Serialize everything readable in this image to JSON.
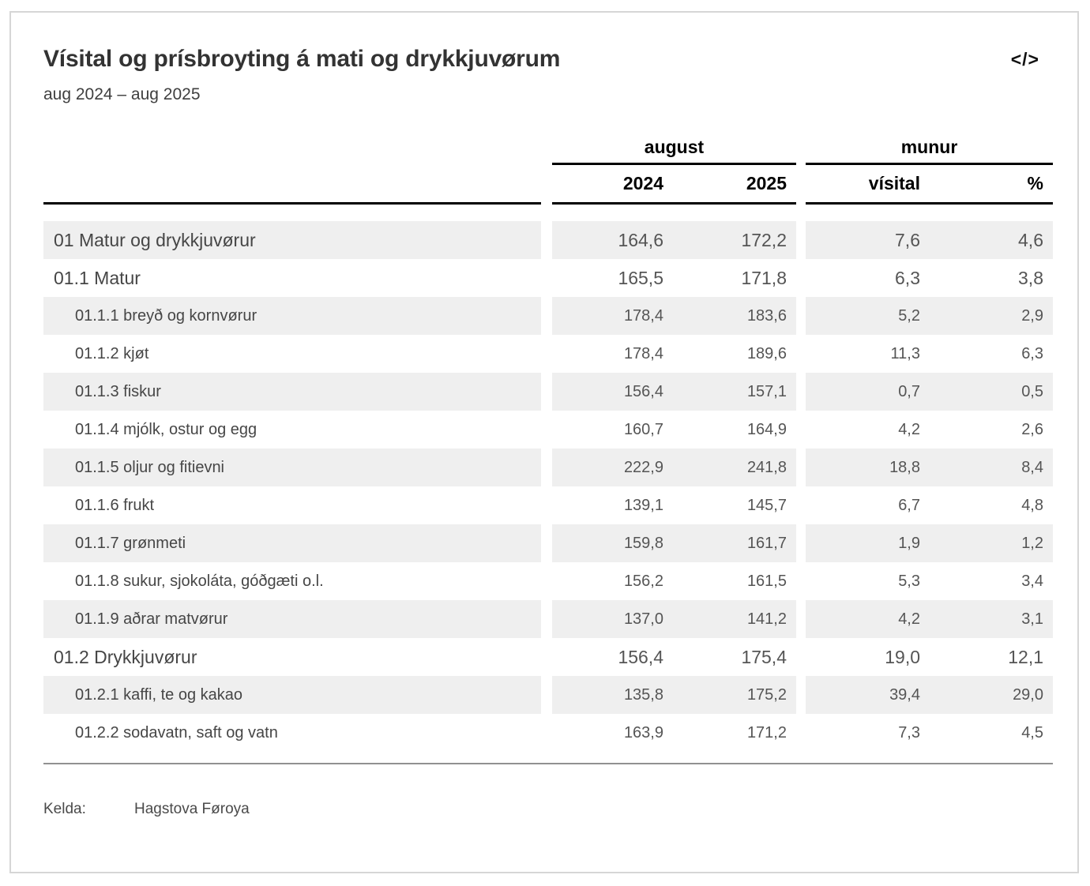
{
  "colors": {
    "row_shade": "#efefef",
    "header_line": "#000000",
    "bottom_rule": "#919191",
    "card_border": "#d6d6d6",
    "title_text": "#333333",
    "body_text": "#464646",
    "number_text": "#555555"
  },
  "header": {
    "title": "Vísital og prísbroyting á mati og drykkjuvørum",
    "subtitle": "aug 2024 – aug 2025",
    "embed_icon": "</>"
  },
  "table": {
    "col_groups": [
      {
        "label": "august",
        "cols": [
          "2024",
          "2025"
        ]
      },
      {
        "label": "munur",
        "cols": [
          "vísital",
          "%"
        ]
      }
    ],
    "rows": [
      {
        "label": "01 Matur og drykkjuvørur",
        "level": 1,
        "values": [
          "164,6",
          "172,2",
          "7,6",
          "4,6"
        ]
      },
      {
        "label": "01.1 Matur",
        "level": 2,
        "values": [
          "165,5",
          "171,8",
          "6,3",
          "3,8"
        ]
      },
      {
        "label": "01.1.1 breyð og kornvørur",
        "level": 3,
        "values": [
          "178,4",
          "183,6",
          "5,2",
          "2,9"
        ]
      },
      {
        "label": "01.1.2 kjøt",
        "level": 3,
        "values": [
          "178,4",
          "189,6",
          "11,3",
          "6,3"
        ]
      },
      {
        "label": "01.1.3 fiskur",
        "level": 3,
        "values": [
          "156,4",
          "157,1",
          "0,7",
          "0,5"
        ]
      },
      {
        "label": "01.1.4 mjólk, ostur og egg",
        "level": 3,
        "values": [
          "160,7",
          "164,9",
          "4,2",
          "2,6"
        ]
      },
      {
        "label": "01.1.5 oljur og fitievni",
        "level": 3,
        "values": [
          "222,9",
          "241,8",
          "18,8",
          "8,4"
        ]
      },
      {
        "label": "01.1.6 frukt",
        "level": 3,
        "values": [
          "139,1",
          "145,7",
          "6,7",
          "4,8"
        ]
      },
      {
        "label": "01.1.7 grønmeti",
        "level": 3,
        "values": [
          "159,8",
          "161,7",
          "1,9",
          "1,2"
        ]
      },
      {
        "label": "01.1.8 sukur, sjokoláta, góðgæti o.l.",
        "level": 3,
        "values": [
          "156,2",
          "161,5",
          "5,3",
          "3,4"
        ]
      },
      {
        "label": "01.1.9 aðrar matvørur",
        "level": 3,
        "values": [
          "137,0",
          "141,2",
          "4,2",
          "3,1"
        ]
      },
      {
        "label": "01.2 Drykkjuvørur",
        "level": 2,
        "values": [
          "156,4",
          "175,4",
          "19,0",
          "12,1"
        ]
      },
      {
        "label": "01.2.1 kaffi, te og kakao",
        "level": 3,
        "values": [
          "135,8",
          "175,2",
          "39,4",
          "29,0"
        ]
      },
      {
        "label": "01.2.2 sodavatn, saft og vatn",
        "level": 3,
        "values": [
          "163,9",
          "171,2",
          "7,3",
          "4,5"
        ]
      }
    ]
  },
  "footer": {
    "source_label": "Kelda:",
    "source": "Hagstova Føroya"
  },
  "chart_data": {
    "type": "table",
    "title": "Vísital og prísbroyting á mati og drykkjuvørum",
    "subtitle": "aug 2024 – aug 2025",
    "column_groups": [
      {
        "label": "august",
        "columns": [
          "2024",
          "2025"
        ]
      },
      {
        "label": "munur",
        "columns": [
          "vísital",
          "%"
        ]
      }
    ],
    "rows": [
      {
        "label": "01 Matur og drykkjuvørur",
        "aug_2024": 164.6,
        "aug_2025": 172.2,
        "munur_visital": 7.6,
        "munur_pct": 4.6
      },
      {
        "label": "01.1 Matur",
        "aug_2024": 165.5,
        "aug_2025": 171.8,
        "munur_visital": 6.3,
        "munur_pct": 3.8
      },
      {
        "label": "01.1.1 breyð og kornvørur",
        "aug_2024": 178.4,
        "aug_2025": 183.6,
        "munur_visital": 5.2,
        "munur_pct": 2.9
      },
      {
        "label": "01.1.2 kjøt",
        "aug_2024": 178.4,
        "aug_2025": 189.6,
        "munur_visital": 11.3,
        "munur_pct": 6.3
      },
      {
        "label": "01.1.3 fiskur",
        "aug_2024": 156.4,
        "aug_2025": 157.1,
        "munur_visital": 0.7,
        "munur_pct": 0.5
      },
      {
        "label": "01.1.4 mjólk, ostur og egg",
        "aug_2024": 160.7,
        "aug_2025": 164.9,
        "munur_visital": 4.2,
        "munur_pct": 2.6
      },
      {
        "label": "01.1.5 oljur og fitievni",
        "aug_2024": 222.9,
        "aug_2025": 241.8,
        "munur_visital": 18.8,
        "munur_pct": 8.4
      },
      {
        "label": "01.1.6 frukt",
        "aug_2024": 139.1,
        "aug_2025": 145.7,
        "munur_visital": 6.7,
        "munur_pct": 4.8
      },
      {
        "label": "01.1.7 grønmeti",
        "aug_2024": 159.8,
        "aug_2025": 161.7,
        "munur_visital": 1.9,
        "munur_pct": 1.2
      },
      {
        "label": "01.1.8 sukur, sjokoláta, góðgæti o.l.",
        "aug_2024": 156.2,
        "aug_2025": 161.5,
        "munur_visital": 5.3,
        "munur_pct": 3.4
      },
      {
        "label": "01.1.9 aðrar matvørur",
        "aug_2024": 137.0,
        "aug_2025": 141.2,
        "munur_visital": 4.2,
        "munur_pct": 3.1
      },
      {
        "label": "01.2 Drykkjuvørur",
        "aug_2024": 156.4,
        "aug_2025": 175.4,
        "munur_visital": 19.0,
        "munur_pct": 12.1
      },
      {
        "label": "01.2.1 kaffi, te og kakao",
        "aug_2024": 135.8,
        "aug_2025": 175.2,
        "munur_visital": 39.4,
        "munur_pct": 29.0
      },
      {
        "label": "01.2.2 sodavatn, saft og vatn",
        "aug_2024": 163.9,
        "aug_2025": 171.2,
        "munur_visital": 7.3,
        "munur_pct": 4.5
      }
    ]
  }
}
